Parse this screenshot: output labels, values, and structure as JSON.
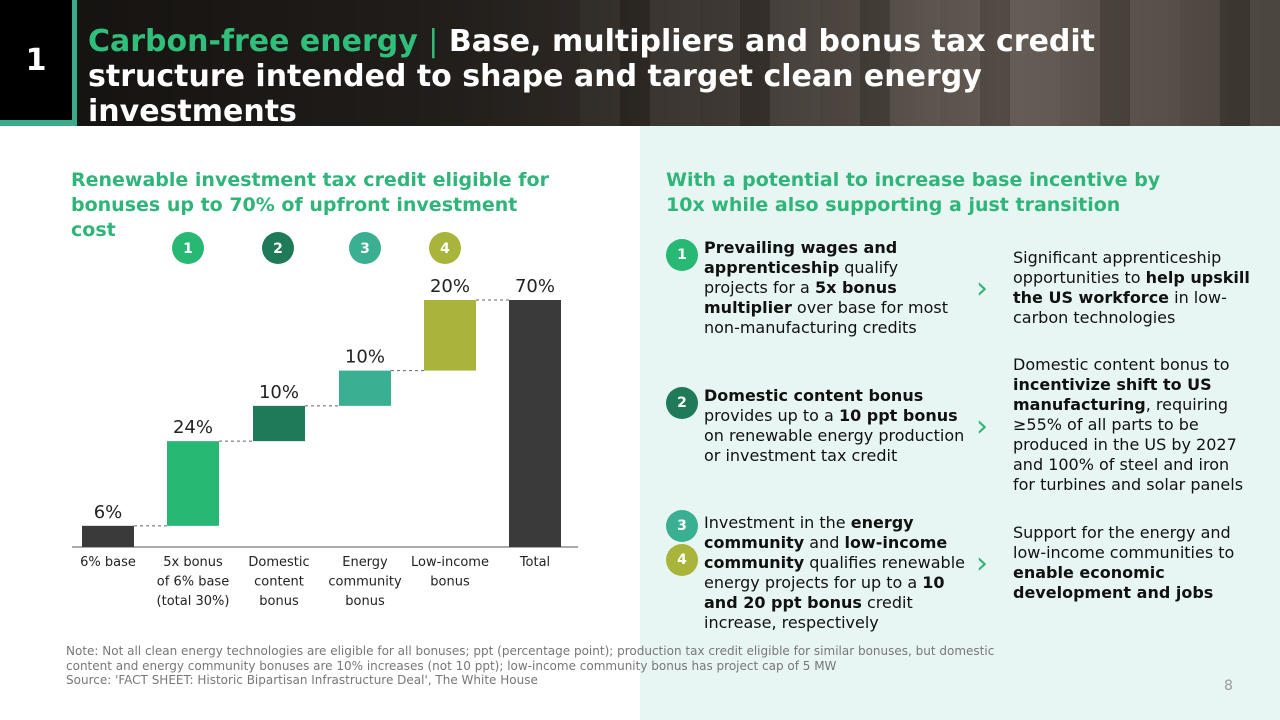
{
  "section_number": "1",
  "title": {
    "accent": "Carbon-free energy",
    "separator": "|",
    "rest": "Base, multipliers and bonus tax credit structure intended to shape and target clean energy investments"
  },
  "left_heading": "Renewable investment tax credit eligible for bonuses up to 70% of upfront investment cost",
  "right_heading": "With a potential to increase base incentive by 10x while also supporting a just transition",
  "colors": {
    "accent_green": "#2fb57a",
    "bar_dark": "#3a3a3a",
    "bonus1": "#27b874",
    "bonus2": "#1f7a5a",
    "bonus3": "#3aaf92",
    "bonus4": "#a8b43a"
  },
  "chart_data": {
    "type": "bar",
    "subtype": "waterfall",
    "categories": [
      "6% base",
      "5x bonus of 6% base (total 30%)",
      "Domestic content bonus",
      "Energy community bonus",
      "Low-income bonus",
      "Total"
    ],
    "category_lines": [
      [
        "6% base"
      ],
      [
        "5x bonus",
        "of 6% base",
        "(total 30%)"
      ],
      [
        "Domestic",
        "content",
        "bonus"
      ],
      [
        "Energy",
        "community",
        "bonus"
      ],
      [
        "Low-income",
        "bonus"
      ],
      [
        "Total"
      ]
    ],
    "values": [
      6,
      24,
      10,
      10,
      20,
      70
    ],
    "data_labels": [
      "6%",
      "24%",
      "10%",
      "10%",
      "20%",
      "70%"
    ],
    "bar_kind": [
      "base",
      "increment",
      "increment",
      "increment",
      "increment",
      "total"
    ],
    "markers": [
      "",
      "1",
      "2",
      "3",
      "4",
      ""
    ],
    "bar_colors": [
      "#3a3a3a",
      "#27b874",
      "#1f7a5a",
      "#3aaf92",
      "#a8b43a",
      "#3a3a3a"
    ],
    "ylim": [
      0,
      70
    ],
    "grid": false,
    "legend": "none"
  },
  "rows": [
    {
      "numbers": [
        "1"
      ],
      "num_colors": [
        "#27b874"
      ],
      "left_parts": [
        [
          "b",
          "Prevailing wages and apprenticeship"
        ],
        [
          "t",
          " qualify projects for a "
        ],
        [
          "b",
          "5x bonus multiplier"
        ],
        [
          "t",
          " over base for most non-manufacturing credits"
        ]
      ],
      "right_parts": [
        [
          "t",
          "Significant apprenticeship opportunities to "
        ],
        [
          "b",
          "help upskill the US workforce"
        ],
        [
          "t",
          " in low-carbon technologies"
        ]
      ]
    },
    {
      "numbers": [
        "2"
      ],
      "num_colors": [
        "#1f7a5a"
      ],
      "left_parts": [
        [
          "b",
          "Domestic content bonus"
        ],
        [
          "t",
          " provides up to a "
        ],
        [
          "b",
          "10 ppt bonus"
        ],
        [
          "t",
          " on renewable energy production or investment tax credit"
        ]
      ],
      "right_parts": [
        [
          "t",
          "Domestic content bonus to "
        ],
        [
          "b",
          "incentivize shift to US manufacturing"
        ],
        [
          "t",
          ", requiring ≥55% of all parts to be produced in the US by 2027 and 100% of steel and iron for turbines and solar panels"
        ]
      ]
    },
    {
      "numbers": [
        "3",
        "4"
      ],
      "num_colors": [
        "#3aaf92",
        "#a8b43a"
      ],
      "left_parts": [
        [
          "t",
          "Investment in the "
        ],
        [
          "b",
          "energy community"
        ],
        [
          "t",
          " and "
        ],
        [
          "b",
          "low-income community"
        ],
        [
          "t",
          " qualifies renewable energy projects for up to a "
        ],
        [
          "b",
          "10 and 20 ppt bonus"
        ],
        [
          "t",
          " credit increase, respectively"
        ]
      ],
      "right_parts": [
        [
          "t",
          "Support for the energy and low-income communities to "
        ],
        [
          "b",
          "enable economic development and jobs"
        ]
      ]
    }
  ],
  "note": "Note: Not all clean energy technologies are eligible for all bonuses; ppt (percentage point); production tax credit eligible for similar bonuses, but domestic content and energy community bonuses are 10% increases (not 10 ppt); low-income community bonus has project cap of 5 MW",
  "source": "Source: 'FACT SHEET: Historic Bipartisan Infrastructure Deal', The White House",
  "page_number": "8"
}
